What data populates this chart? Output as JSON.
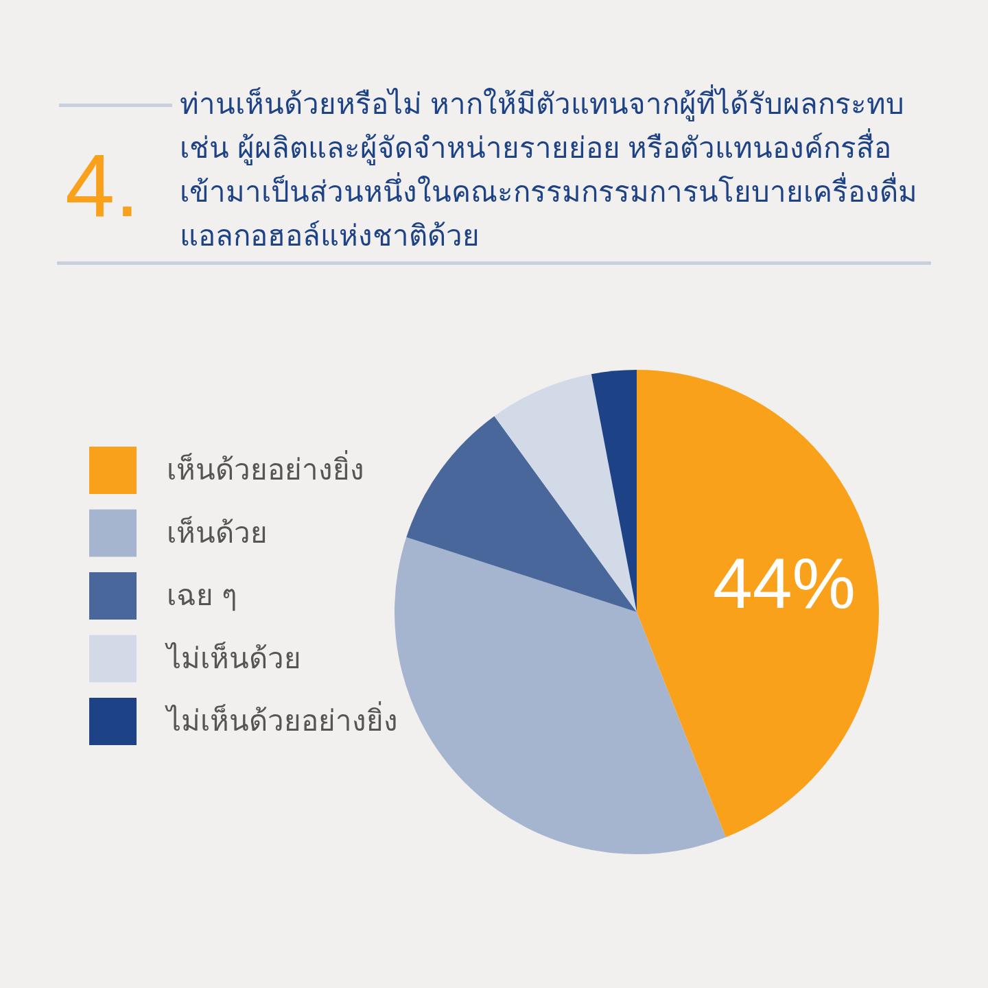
{
  "chart_data": {
    "type": "pie",
    "title": "ท่านเห็นด้วยหรือไม่ หากให้มีตัวแทนจากผู้ที่ได้รับผลกระทบ เช่น ผู้ผลิตและผู้จัดจำหน่ายรายย่อย หรือตัวแทนองค์กรสื่อ เข้ามาเป็นส่วนหนึ่งในคณะกรรมกรรมการนโยบายเครื่องดื่มแอลกอฮอล์แห่งชาติด้วย",
    "annotations": [
      "4."
    ],
    "categories": [
      "เห็นด้วยอย่างยิ่ง",
      "เห็นด้วย",
      "เฉย ๆ",
      "ไม่เห็นด้วย",
      "ไม่เห็นด้วยอย่างยิ่ง"
    ],
    "values": [
      44,
      36,
      10,
      7,
      3
    ],
    "value_labels": [
      "44%",
      null,
      null,
      null,
      null
    ],
    "colors": [
      "#f9a11b",
      "#a5b4cf",
      "#4a679c",
      "#d3dae7",
      "#1e4286"
    ],
    "legend": "left"
  }
}
